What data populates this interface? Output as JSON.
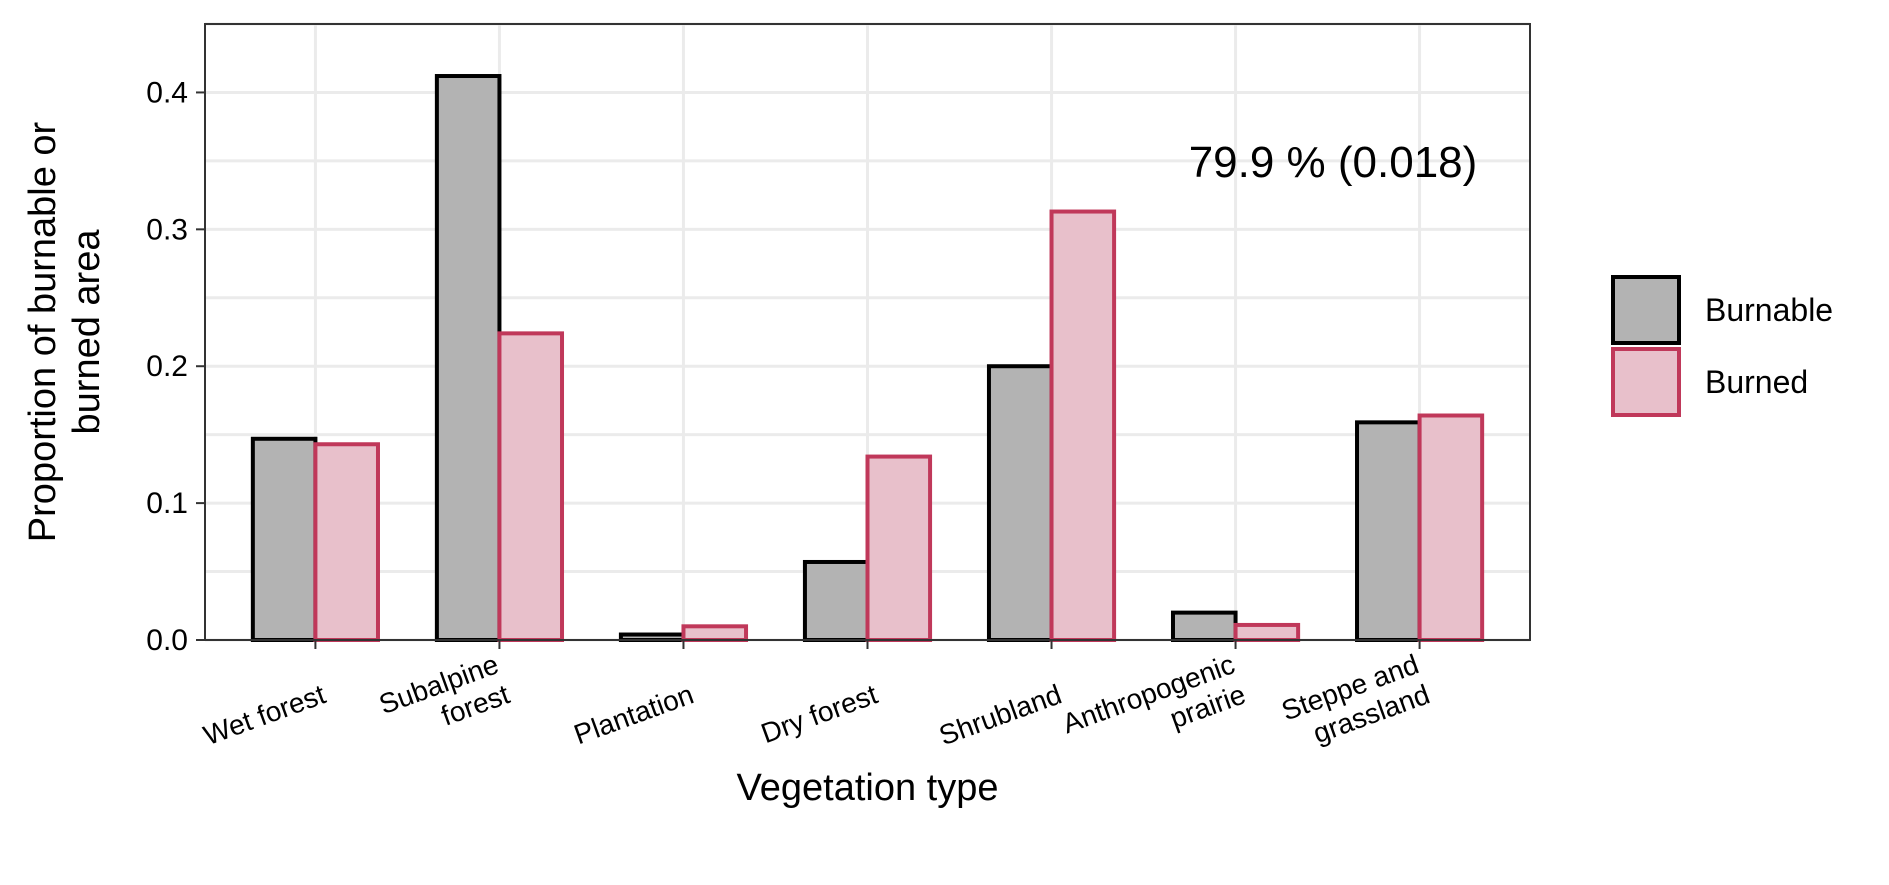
{
  "chart_data": {
    "type": "bar",
    "categories": [
      [
        "Wet forest"
      ],
      [
        "Subalpine",
        "forest"
      ],
      [
        "Plantation"
      ],
      [
        "Dry forest"
      ],
      [
        "Shrubland"
      ],
      [
        "Anthropogenic",
        "prairie"
      ],
      [
        "Steppe and",
        "grassland"
      ]
    ],
    "series": [
      {
        "name": "Burnable",
        "values": [
          0.147,
          0.412,
          0.004,
          0.057,
          0.2,
          0.02,
          0.159
        ],
        "fill": "#b3b3b3",
        "stroke": "#000000"
      },
      {
        "name": "Burned",
        "values": [
          0.143,
          0.224,
          0.01,
          0.134,
          0.313,
          0.011,
          0.164
        ],
        "fill": "#e8c0cb",
        "stroke": "#c0385a"
      }
    ],
    "xlabel": "Vegetation type",
    "ylabel": [
      "Proportion of burnable or",
      "burned area"
    ],
    "ylim": [
      0,
      0.45
    ],
    "yticks": [
      0.0,
      0.1,
      0.2,
      0.3,
      0.4
    ],
    "ytick_labels": [
      "0.0",
      "0.1",
      "0.2",
      "0.3",
      "0.4"
    ],
    "annotation": "79.9 % (0.018)",
    "grid": true,
    "legend_position": "right"
  }
}
